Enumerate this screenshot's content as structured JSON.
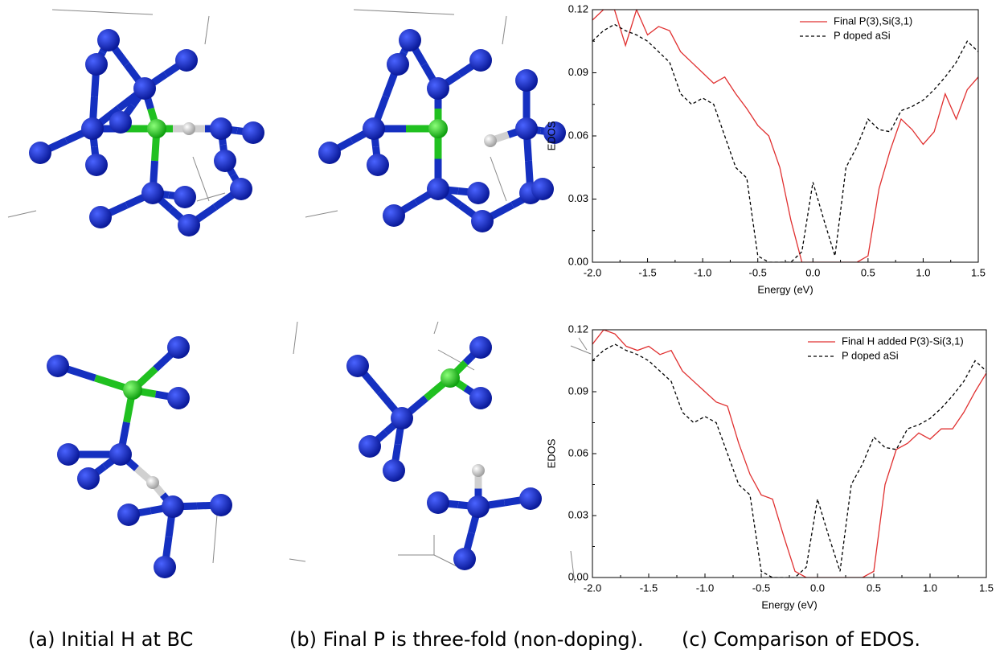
{
  "captions": [
    "(a) Initial H at BC",
    "(b) Final P is three-fold (non-doping).",
    "(c) Comparison of EDOS."
  ],
  "chart_data": [
    {
      "type": "line",
      "xlabel": "Energy (eV)",
      "ylabel": "EDOS",
      "xlim": [
        -2,
        1.5
      ],
      "ylim": [
        0,
        0.12
      ],
      "xticks": [
        {
          "value": -2,
          "label": "-2.0"
        },
        -1.5,
        {
          "value": -1,
          "label": "-1.0"
        },
        -0.5,
        {
          "value": 0,
          "label": "0.0"
        },
        0.5,
        {
          "value": 1,
          "label": "1.0"
        },
        1.5
      ],
      "yticks": [
        {
          "value": 0,
          "label": "0.00"
        },
        0.03,
        0.06,
        0.09,
        0.12
      ],
      "legend": "upper right",
      "x": [
        -2.0,
        -1.9,
        -1.8,
        -1.7,
        -1.6,
        -1.5,
        -1.4,
        -1.3,
        -1.2,
        -1.1,
        -1.0,
        -0.9,
        -0.8,
        -0.7,
        -0.6,
        -0.5,
        -0.4,
        -0.3,
        -0.2,
        -0.1,
        0.0,
        0.1,
        0.2,
        0.3,
        0.4,
        0.5,
        0.6,
        0.7,
        0.8,
        0.9,
        1.0,
        1.1,
        1.2,
        1.3,
        1.4,
        1.5
      ],
      "series": [
        {
          "name": "Final P(3),Si(3,1)",
          "color": "#e03030",
          "line_style": "solid",
          "values": [
            0.115,
            0.12,
            0.12,
            0.103,
            0.12,
            0.108,
            0.112,
            0.11,
            0.1,
            0.095,
            0.09,
            0.085,
            0.088,
            0.08,
            0.073,
            0.065,
            0.06,
            0.045,
            0.02,
            0,
            0,
            0,
            0,
            0,
            0,
            0.003,
            0.035,
            0.053,
            0.068,
            0.063,
            0.056,
            0.062,
            0.08,
            0.068,
            0.082,
            0.088
          ]
        },
        {
          "name": "P doped aSi",
          "color": "#000000",
          "line_style": "dashed",
          "values": [
            0.105,
            0.11,
            0.113,
            0.11,
            0.108,
            0.105,
            0.1,
            0.095,
            0.08,
            0.075,
            0.078,
            0.075,
            0.06,
            0.045,
            0.04,
            0.003,
            0,
            0,
            0,
            0.005,
            0.038,
            0.02,
            0.003,
            0.045,
            0.055,
            0.068,
            0.063,
            0.062,
            0.072,
            0.074,
            0.077,
            0.082,
            0.088,
            0.095,
            0.105,
            0.1
          ]
        }
      ]
    },
    {
      "type": "line",
      "xlabel": "Energy (eV)",
      "ylabel": "EDOS",
      "xlim": [
        -2,
        1.5
      ],
      "ylim": [
        0,
        0.12
      ],
      "xticks": [
        {
          "value": -2,
          "label": "-2.0"
        },
        -1.5,
        {
          "value": -1,
          "label": "-1.0"
        },
        -0.5,
        {
          "value": 0,
          "label": "0.0"
        },
        0.5,
        {
          "value": 1,
          "label": "1.0"
        },
        1.5
      ],
      "yticks": [
        {
          "value": 0,
          "label": "0.00"
        },
        0.03,
        0.06,
        0.09,
        0.12
      ],
      "legend": "upper right",
      "x": [
        -2.0,
        -1.9,
        -1.8,
        -1.7,
        -1.6,
        -1.5,
        -1.4,
        -1.3,
        -1.2,
        -1.1,
        -1.0,
        -0.9,
        -0.8,
        -0.7,
        -0.6,
        -0.5,
        -0.4,
        -0.3,
        -0.2,
        -0.1,
        0.0,
        0.1,
        0.2,
        0.3,
        0.4,
        0.5,
        0.6,
        0.7,
        0.8,
        0.9,
        1.0,
        1.1,
        1.2,
        1.3,
        1.4,
        1.5
      ],
      "series": [
        {
          "name": "Final H added P(3)-Si(3,1)",
          "color": "#e03030",
          "line_style": "solid",
          "values": [
            0.113,
            0.12,
            0.118,
            0.112,
            0.11,
            0.112,
            0.108,
            0.11,
            0.1,
            0.095,
            0.09,
            0.085,
            0.083,
            0.065,
            0.05,
            0.04,
            0.038,
            0.02,
            0.003,
            0,
            0,
            0,
            0,
            0,
            0,
            0.003,
            0.045,
            0.062,
            0.065,
            0.07,
            0.067,
            0.072,
            0.072,
            0.08,
            0.09,
            0.099
          ]
        },
        {
          "name": "P doped aSi",
          "color": "#000000",
          "line_style": "dashed",
          "values": [
            0.105,
            0.11,
            0.113,
            0.11,
            0.108,
            0.105,
            0.1,
            0.095,
            0.08,
            0.075,
            0.078,
            0.075,
            0.06,
            0.045,
            0.04,
            0.003,
            0,
            0,
            0,
            0.005,
            0.038,
            0.02,
            0.003,
            0.045,
            0.055,
            0.068,
            0.063,
            0.062,
            0.072,
            0.074,
            0.077,
            0.082,
            0.088,
            0.095,
            0.105,
            0.1
          ]
        }
      ]
    }
  ]
}
